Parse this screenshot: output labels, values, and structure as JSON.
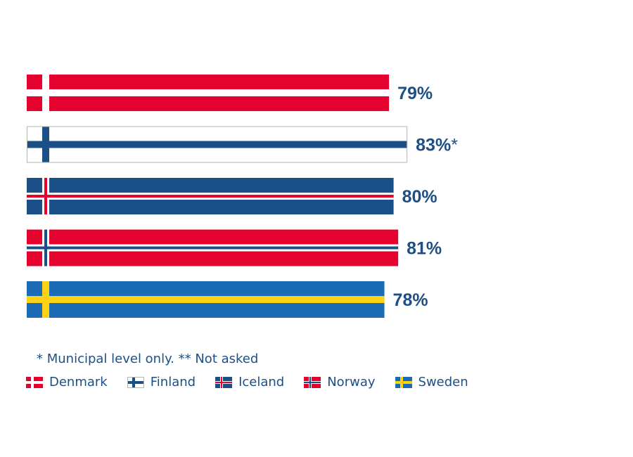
{
  "chart_data": {
    "type": "bar",
    "orientation": "horizontal",
    "categories": [
      "Denmark",
      "Finland",
      "Iceland",
      "Norway",
      "Sweden"
    ],
    "values": [
      79,
      83,
      80,
      81,
      78
    ],
    "value_labels": [
      "79%",
      "83%",
      "80%",
      "81%",
      "78%"
    ],
    "value_marks": [
      "",
      "*",
      "",
      "",
      ""
    ],
    "unit": "%",
    "xlim": [
      0,
      100
    ],
    "grid": false,
    "legend_position": "bottom",
    "flags": {
      "Denmark": {
        "field": "#e4022e",
        "cross": "#ffffff",
        "inner": null,
        "border": null
      },
      "Finland": {
        "field": "#ffffff",
        "cross": "#1a4f88",
        "inner": null,
        "border": "#b5b5b5"
      },
      "Iceland": {
        "field": "#1a4f88",
        "cross": "#ffffff",
        "inner": "#e4022e",
        "border": null
      },
      "Norway": {
        "field": "#e4022e",
        "cross": "#ffffff",
        "inner": "#1a4f88",
        "border": null
      },
      "Sweden": {
        "field": "#1b6cb5",
        "cross": "#fcd116",
        "inner": null,
        "border": null
      }
    }
  },
  "footnote": "* Municipal level only.  ** Not asked",
  "legend": [
    {
      "label": "Denmark"
    },
    {
      "label": "Finland"
    },
    {
      "label": "Iceland"
    },
    {
      "label": "Norway"
    },
    {
      "label": "Sweden"
    }
  ],
  "colors": {
    "label_text": "#1d4f85"
  }
}
